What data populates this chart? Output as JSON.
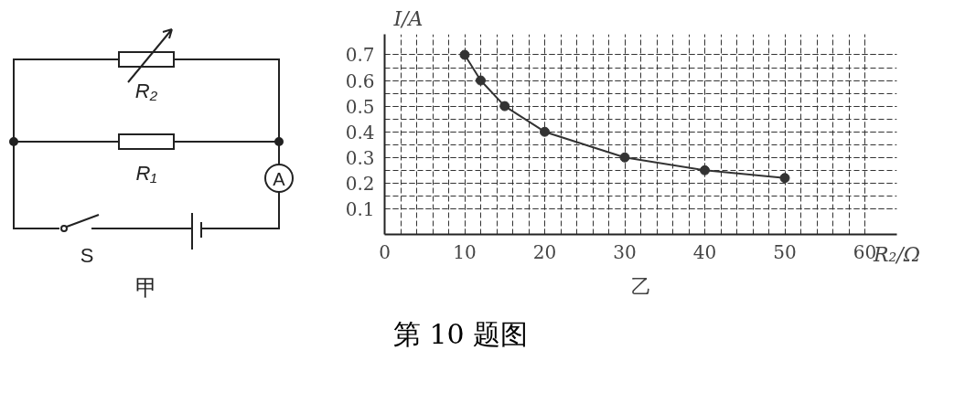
{
  "chart_data": [
    {
      "type": "other",
      "annotations": [
        "R₂",
        "R₁",
        "A",
        "S",
        "甲"
      ]
    },
    {
      "type": "line",
      "xlabel": "R₂/Ω",
      "ylabel": "I/A",
      "x": [
        10,
        12,
        15,
        20,
        30,
        40,
        50
      ],
      "series": [
        {
          "color": "#333333",
          "values": [
            0.7,
            0.6,
            0.5,
            0.4,
            0.3,
            0.25,
            0.22
          ]
        }
      ],
      "marker": "circle",
      "grid": true,
      "xlim": [
        0,
        64
      ],
      "ylim": [
        0,
        0.78
      ],
      "xticks": [
        0,
        10,
        20,
        30,
        40,
        50,
        60
      ],
      "yticks": [
        0.1,
        0.2,
        0.3,
        0.4,
        0.5,
        0.6,
        0.7
      ],
      "annotations": [
        "乙",
        "第 10 题图"
      ]
    }
  ]
}
